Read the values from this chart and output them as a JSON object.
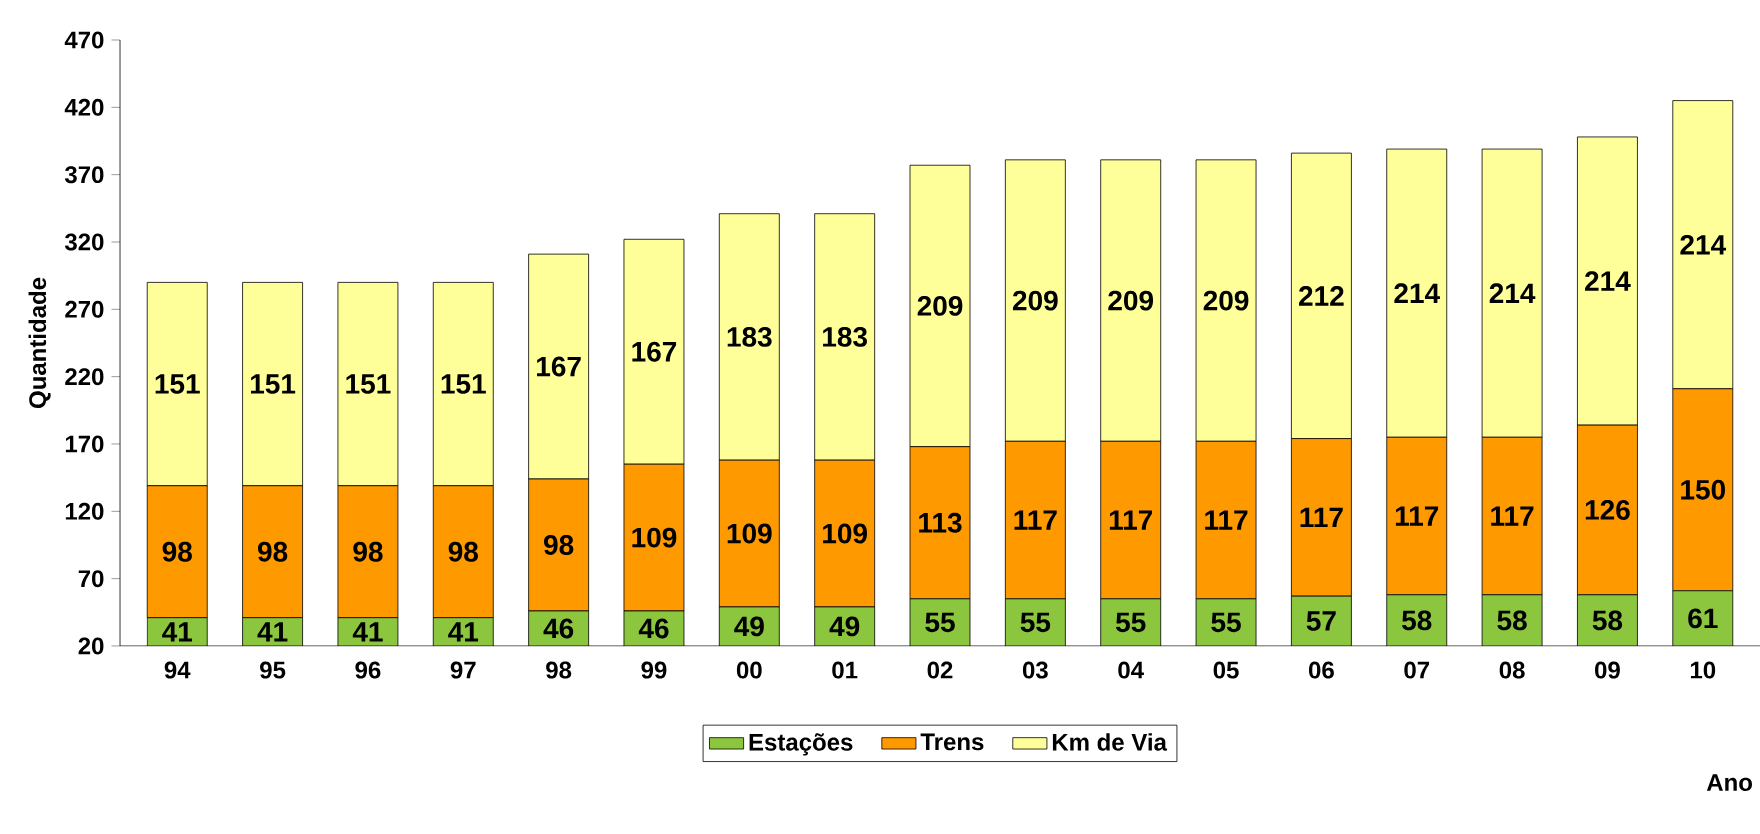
{
  "chart_data": {
    "type": "bar",
    "stacked": true,
    "xlabel": "Ano",
    "ylabel": "Quantidade",
    "categories": [
      "94",
      "95",
      "96",
      "97",
      "98",
      "99",
      "00",
      "01",
      "02",
      "03",
      "04",
      "05",
      "06",
      "07",
      "08",
      "09",
      "10"
    ],
    "series": [
      {
        "name": "Estações",
        "color": "#8cc63f",
        "values": [
          41,
          41,
          41,
          41,
          46,
          46,
          49,
          49,
          55,
          55,
          55,
          55,
          57,
          58,
          58,
          58,
          61
        ]
      },
      {
        "name": "Trens",
        "color": "#ff9900",
        "values": [
          98,
          98,
          98,
          98,
          98,
          109,
          109,
          109,
          113,
          117,
          117,
          117,
          117,
          117,
          117,
          126,
          150
        ]
      },
      {
        "name": "Km de Via",
        "color": "#ffff99",
        "values": [
          151,
          151,
          151,
          151,
          167,
          167,
          183,
          183,
          209,
          209,
          209,
          209,
          212,
          214,
          214,
          214,
          214
        ]
      }
    ],
    "ylim": [
      20,
      470
    ],
    "yticks": [
      20,
      70,
      120,
      170,
      220,
      270,
      320,
      370,
      420,
      470
    ],
    "data_labels": true,
    "legend": "bottom"
  }
}
